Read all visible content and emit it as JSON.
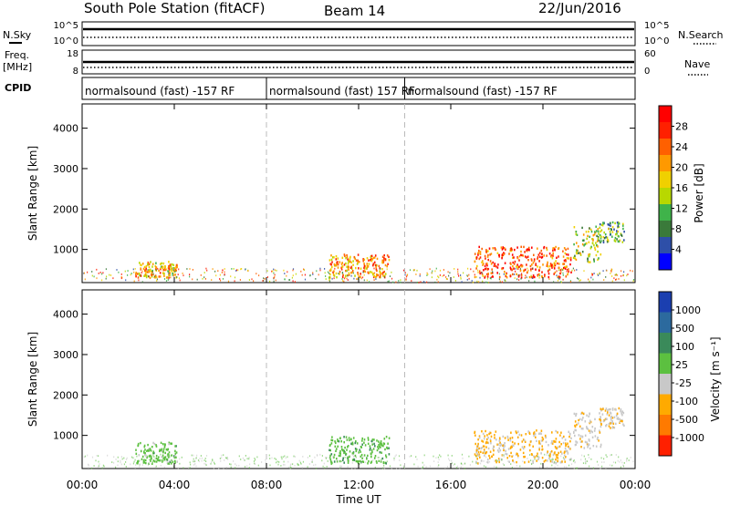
{
  "header": {
    "station": "South Pole Station (fitACF)",
    "beam": "Beam 14",
    "date": "22/Jun/2016"
  },
  "side_labels": {
    "nsky": "N.Sky",
    "freq": "Freq.",
    "freq_unit": "[MHz]",
    "cpid": "CPID",
    "nsearch": "N.Search",
    "nave": "Nave"
  },
  "strip_ticks": {
    "nsky_top": "10^5",
    "nsky_bottom": "10^0",
    "nsearch_top": "10^5",
    "nsearch_bottom": "10^0",
    "freq_top": "18",
    "freq_bottom": "8",
    "nave_top": "60",
    "nave_bottom": "0"
  },
  "cpid_segments": [
    "normalsound (fast) -157 RF",
    "normalsound (fast) 157 RF",
    "normalsound (fast) -157 RF"
  ],
  "chart_data": [
    {
      "type": "heatmap",
      "panel": "power",
      "ylabel": "Slant Range [km]",
      "xlabel": "",
      "x_range_hours": [
        0,
        24
      ],
      "ylim_km": [
        180,
        4600
      ],
      "y_ticks": [
        "1000",
        "2000",
        "3000",
        "4000"
      ],
      "colorbar": {
        "label": "Power [dB]",
        "ticks": [
          "4",
          "8",
          "12",
          "16",
          "20",
          "24",
          "28"
        ],
        "range": [
          0,
          30
        ],
        "colors": [
          "#0000ff",
          "#2e4fa8",
          "#3a7a3a",
          "#3fb34a",
          "#b8d800",
          "#f0d000",
          "#ff9900",
          "#ff6000",
          "#ff2000",
          "#ff0000"
        ]
      },
      "echo_regions": [
        {
          "start_h": 2.3,
          "end_h": 4.1,
          "range_km": [
            320,
            720
          ],
          "level": 18
        },
        {
          "start_h": 10.7,
          "end_h": 13.3,
          "range_km": [
            330,
            900
          ],
          "level": 20
        },
        {
          "start_h": 17.0,
          "end_h": 21.2,
          "range_km": [
            330,
            1100
          ],
          "level": 24
        },
        {
          "start_h": 21.3,
          "end_h": 22.5,
          "range_km": [
            700,
            1600
          ],
          "level": 14
        },
        {
          "start_h": 22.4,
          "end_h": 23.5,
          "range_km": [
            1200,
            1700
          ],
          "level": 10
        }
      ]
    },
    {
      "type": "heatmap",
      "panel": "velocity",
      "ylabel": "Slant Range [km]",
      "xlabel": "Time UT",
      "x_range_hours": [
        0,
        24
      ],
      "ylim_km": [
        180,
        4600
      ],
      "y_ticks": [
        "1000",
        "2000",
        "3000",
        "4000"
      ],
      "colorbar": {
        "label": "Velocity [m s⁻¹]",
        "ticks": [
          "1000",
          "500",
          "100",
          "25",
          "-25",
          "-100",
          "-500",
          "-1000"
        ],
        "range": [
          -1000,
          1000
        ],
        "colors": [
          "#1b3fb0",
          "#2c6a9e",
          "#3a8a5a",
          "#5cc040",
          "#c8c8c8",
          "#ffaa00",
          "#ff7a00",
          "#ff2000"
        ]
      },
      "echo_regions": [
        {
          "start_h": 2.3,
          "end_h": 4.1,
          "range_km": [
            320,
            850
          ],
          "velocity": 120
        },
        {
          "start_h": 10.7,
          "end_h": 13.3,
          "range_km": [
            330,
            1000
          ],
          "velocity": 150
        },
        {
          "start_h": 17.0,
          "end_h": 21.2,
          "range_km": [
            330,
            1150
          ],
          "velocity": -300
        },
        {
          "start_h": 21.3,
          "end_h": 22.5,
          "range_km": [
            700,
            1600
          ],
          "velocity": -150
        },
        {
          "start_h": 22.4,
          "end_h": 23.5,
          "range_km": [
            1200,
            1700
          ],
          "velocity": -200
        }
      ]
    }
  ],
  "x_ticks": [
    "00:00",
    "04:00",
    "08:00",
    "12:00",
    "16:00",
    "20:00",
    "00:00"
  ],
  "x_tick_hours": [
    0,
    4,
    8,
    12,
    16,
    20,
    24
  ],
  "cpid_change_hours": [
    8,
    14
  ]
}
